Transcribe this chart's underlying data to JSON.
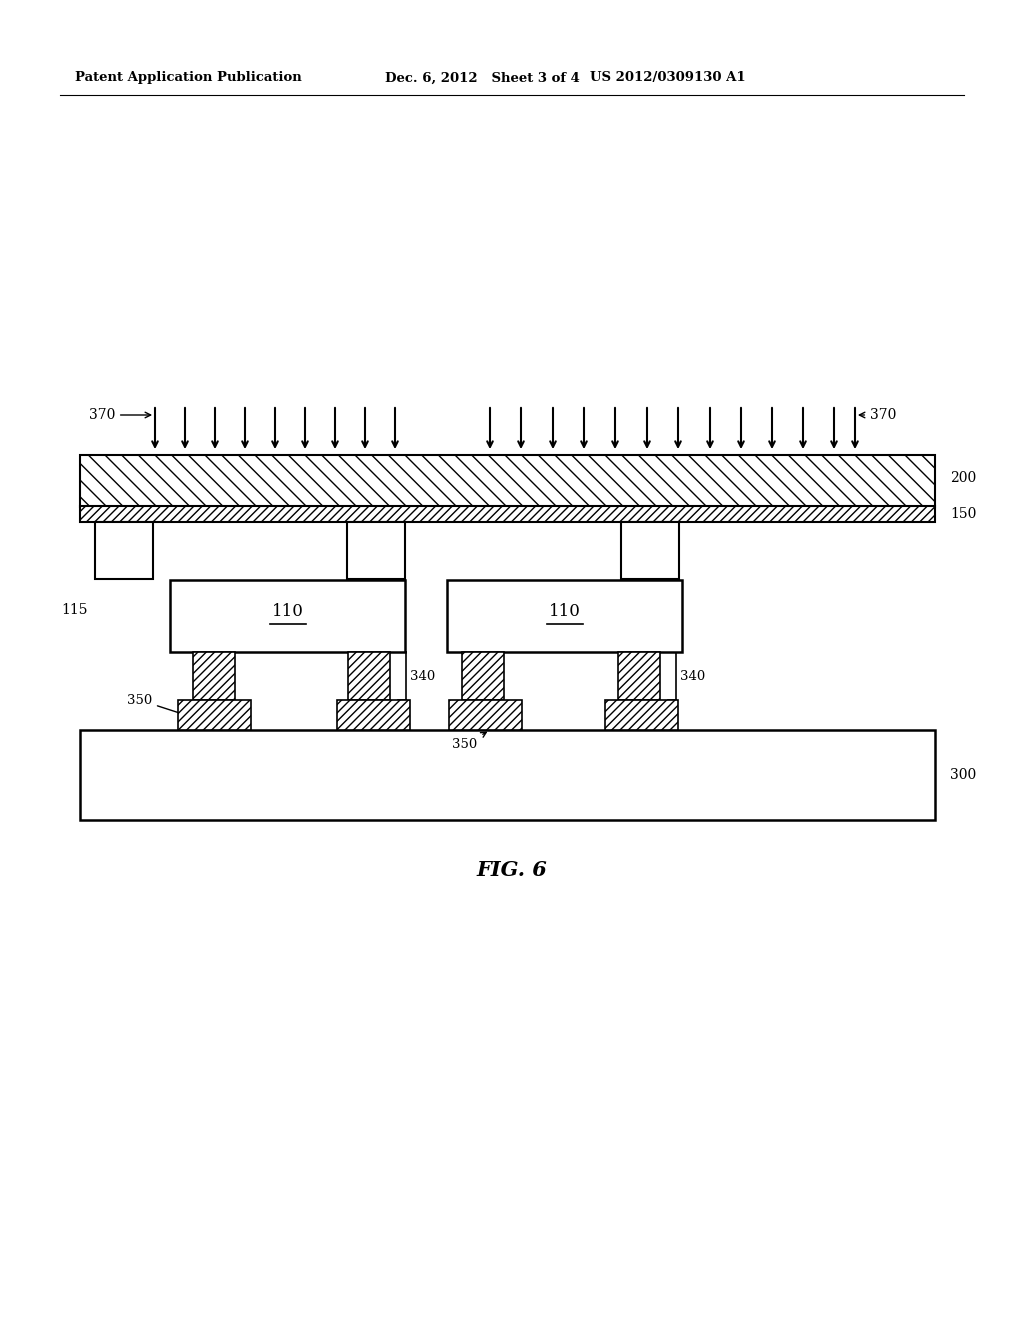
{
  "title_left": "Patent Application Publication",
  "title_mid": "Dec. 6, 2012   Sheet 3 of 4",
  "title_right": "US 2012/0309130 A1",
  "fig_label": "FIG. 6",
  "bg_color": "#ffffff",
  "line_color": "#000000"
}
